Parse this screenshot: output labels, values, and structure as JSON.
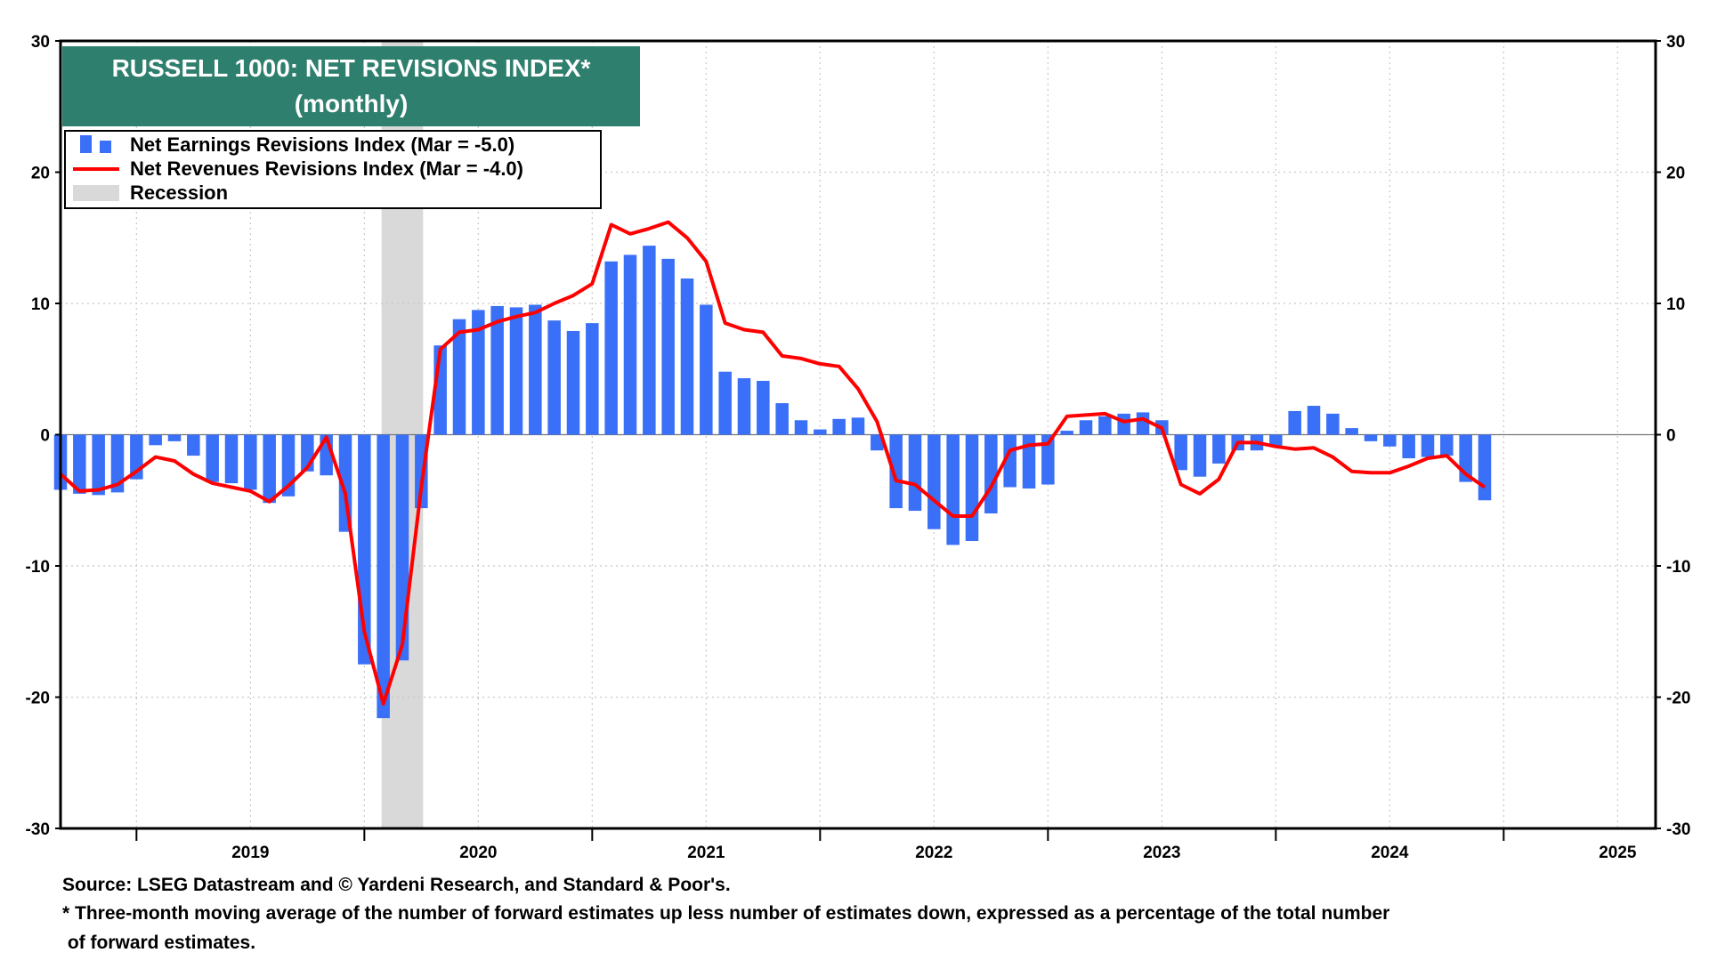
{
  "chart_data": {
    "type": "bar",
    "title": "RUSSELL 1000: NET REVISIONS INDEX*",
    "subtitle": "(monthly)",
    "ylim": [
      -30,
      30
    ],
    "yticks": [
      30,
      20,
      10,
      0,
      -10,
      -20,
      -30
    ],
    "ytick_labels": [
      "30",
      "20",
      "10",
      "0",
      "-10",
      "-20",
      "-30"
    ],
    "x_start": "2018-09",
    "x_end": "2025-09",
    "year_labels": [
      "2019",
      "2020",
      "2021",
      "2022",
      "2023",
      "2024",
      "2025"
    ],
    "grid": true,
    "legend_position": "top-left",
    "recession": {
      "label": "Recession",
      "start": "2020-02",
      "end": "2020-04"
    },
    "series": [
      {
        "name": "Net Earnings Revisions Index (Mar  = -5.0)",
        "kind": "bar",
        "color": "#3a6ff7",
        "start": "2018-09",
        "values": [
          -4.2,
          -4.5,
          -4.6,
          -4.4,
          -3.4,
          -0.8,
          -0.5,
          -1.6,
          -3.6,
          -3.7,
          -4.2,
          -5.2,
          -4.7,
          -2.8,
          -3.1,
          -7.4,
          -17.5,
          -21.6,
          -17.2,
          -5.6,
          6.8,
          8.8,
          9.5,
          9.8,
          9.7,
          9.9,
          8.7,
          7.9,
          8.5,
          13.2,
          13.7,
          14.4,
          13.4,
          11.9,
          9.9,
          4.8,
          4.3,
          4.1,
          2.4,
          1.1,
          0.4,
          1.2,
          1.3,
          -1.2,
          -5.6,
          -5.8,
          -7.2,
          -8.4,
          -8.1,
          -6.0,
          -4.0,
          -4.1,
          -3.8,
          0.3,
          1.1,
          1.4,
          1.6,
          1.7,
          1.1,
          -2.7,
          -3.2,
          -2.2,
          -1.2,
          -1.2,
          -0.9,
          1.8,
          2.2,
          1.6,
          0.5,
          -0.5,
          -0.9,
          -1.8,
          -1.7,
          -1.6,
          -3.6,
          -5.0
        ]
      },
      {
        "name": "Net Revenues Revisions Index (Mar  = -4.0)",
        "kind": "line",
        "color": "#ff0000",
        "start": "2018-09",
        "values": [
          -3.0,
          -4.3,
          -4.2,
          -3.8,
          -2.8,
          -1.7,
          -2.0,
          -3.0,
          -3.7,
          -4.0,
          -4.3,
          -5.1,
          -3.9,
          -2.5,
          -0.2,
          -4.5,
          -15.0,
          -20.5,
          -16.0,
          -4.0,
          6.5,
          7.8,
          8.0,
          8.6,
          9.0,
          9.3,
          10.0,
          10.6,
          11.5,
          16.0,
          15.3,
          15.7,
          16.2,
          15.0,
          13.2,
          8.5,
          8.0,
          7.8,
          6.0,
          5.8,
          5.4,
          5.2,
          3.5,
          1.0,
          -3.5,
          -3.8,
          -5.0,
          -6.2,
          -6.2,
          -4.0,
          -1.2,
          -0.8,
          -0.7,
          1.4,
          1.5,
          1.6,
          1.0,
          1.2,
          0.5,
          -3.8,
          -4.5,
          -3.4,
          -0.6,
          -0.6,
          -0.9,
          -1.1,
          -1.0,
          -1.7,
          -2.8,
          -2.9,
          -2.9,
          -2.4,
          -1.8,
          -1.6,
          -3.0,
          -4.0
        ]
      }
    ]
  },
  "legend": {
    "earnings": "Net Earnings Revisions Index (Mar  = -5.0)",
    "revenues": "Net Revenues Revisions Index (Mar  = -4.0)",
    "recession": "Recession"
  },
  "footer": {
    "source": "Source: LSEG Datastream and © Yardeni Research, and Standard & Poor's.",
    "note_line1": "* Three-month moving average of the number of forward estimates up less number of estimates down, expressed as a percentage of the total number",
    "note_line2": " of forward estimates."
  }
}
